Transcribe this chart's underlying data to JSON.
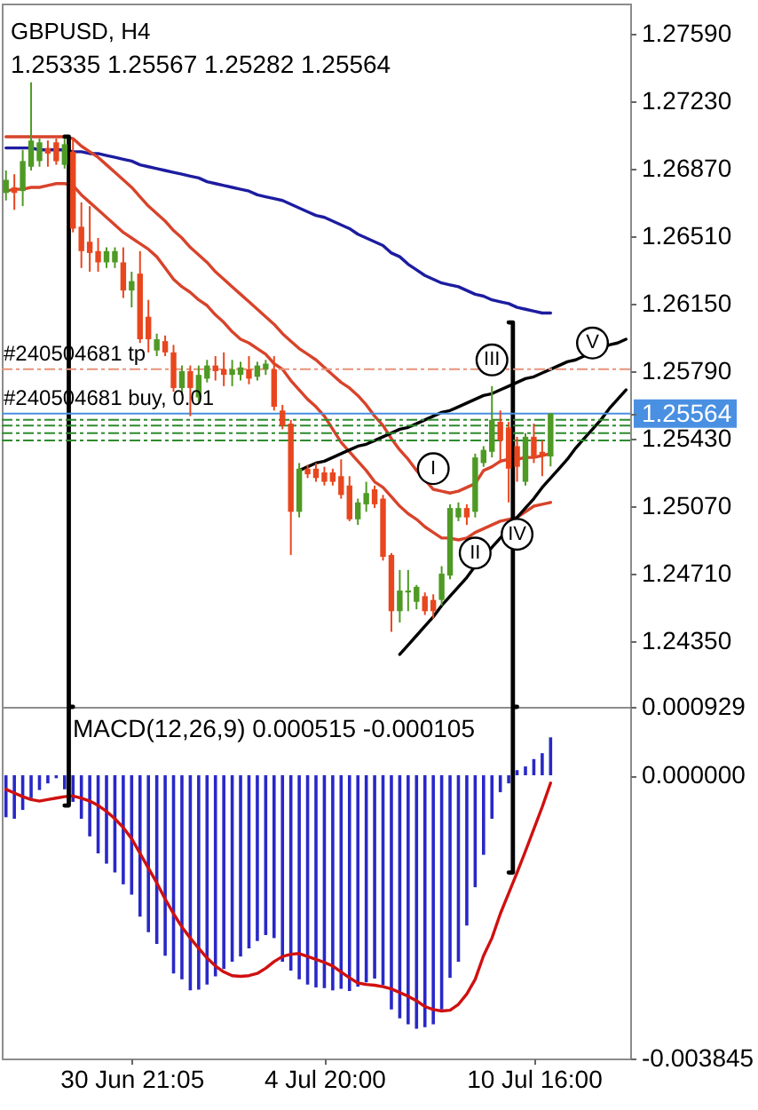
{
  "chart_data": [
    {
      "type": "candlestick",
      "title": "GBPUSD, H4",
      "subtitle": "1.25335 1.25567 1.25282 1.25564",
      "categories": [
        null,
        null,
        null,
        null,
        null,
        null,
        null,
        null,
        null,
        null,
        null,
        null,
        null,
        null,
        null,
        null,
        null,
        null,
        null,
        null,
        null,
        null,
        null,
        null,
        null,
        null,
        null,
        null,
        null,
        null,
        null,
        null,
        null,
        null,
        null,
        null,
        null,
        null,
        null,
        null,
        null,
        null,
        null,
        null,
        null,
        null,
        null,
        null,
        null,
        null,
        null,
        null,
        null,
        null,
        null,
        null,
        null,
        null,
        null,
        null,
        null,
        null,
        null,
        null,
        null,
        null,
        null,
        null,
        null,
        null,
        null,
        null,
        null,
        null,
        null
      ],
      "ohlc": [
        [
          1.2674,
          1.2686,
          1.267,
          1.2681
        ],
        [
          1.2677,
          1.2684,
          1.2665,
          1.2674
        ],
        [
          1.2675,
          1.2697,
          1.2667,
          1.2691
        ],
        [
          1.2688,
          1.2733,
          1.2686,
          1.2702
        ],
        [
          1.2691,
          1.2703,
          1.2688,
          1.2701
        ],
        [
          1.2698,
          1.2702,
          1.2688,
          1.2695
        ],
        [
          1.2701,
          1.2703,
          1.2689,
          1.2691
        ],
        [
          1.2689,
          1.2703,
          1.2687,
          1.27
        ],
        [
          1.2696,
          1.2703,
          1.2653,
          1.2655
        ],
        [
          1.2656,
          1.2669,
          1.2634,
          1.2643
        ],
        [
          1.2648,
          1.2667,
          1.2632,
          1.2642
        ],
        [
          1.2643,
          1.265,
          1.2632,
          1.2637
        ],
        [
          1.2637,
          1.2645,
          1.2634,
          1.2643
        ],
        [
          1.2637,
          1.2645,
          1.2634,
          1.2643
        ],
        [
          1.2637,
          1.2645,
          1.2618,
          1.2622
        ],
        [
          1.2622,
          1.2632,
          1.2613,
          1.2627
        ],
        [
          1.2631,
          1.2643,
          1.2594,
          1.2596
        ],
        [
          1.2608,
          1.2617,
          1.2589,
          1.2596
        ],
        [
          1.259,
          1.2599,
          1.2587,
          1.2596
        ],
        [
          1.2595,
          1.2598,
          1.2587,
          1.2589
        ],
        [
          1.2589,
          1.2593,
          1.2568,
          1.257
        ],
        [
          1.257,
          1.2582,
          1.2566,
          1.2579
        ],
        [
          1.2579,
          1.2582,
          1.2555,
          1.257
        ],
        [
          1.2565,
          1.2582,
          1.2562,
          1.2577
        ],
        [
          1.2575,
          1.2585,
          1.2573,
          1.2582
        ],
        [
          1.2582,
          1.2587,
          1.2574,
          1.2579
        ],
        [
          1.258,
          1.2589,
          1.2571,
          1.2577
        ],
        [
          1.2577,
          1.2585,
          1.2571,
          1.258
        ],
        [
          1.2577,
          1.2584,
          1.2574,
          1.2581
        ],
        [
          1.258,
          1.2587,
          1.2572,
          1.2575
        ],
        [
          1.2576,
          1.2584,
          1.2574,
          1.2582
        ],
        [
          1.258,
          1.2585,
          1.2577,
          1.2583
        ],
        [
          1.258,
          1.2587,
          1.2558,
          1.256
        ],
        [
          1.2558,
          1.2561,
          1.2548,
          1.255
        ],
        [
          1.2551,
          1.2553,
          1.2481,
          1.2504
        ],
        [
          1.2504,
          1.253,
          1.2501,
          1.2527
        ],
        [
          1.2527,
          1.2529,
          1.2522,
          1.2524
        ],
        [
          1.2527,
          1.253,
          1.252,
          1.2522
        ],
        [
          1.2525,
          1.2528,
          1.2518,
          1.252
        ],
        [
          1.2525,
          1.2527,
          1.2518,
          1.252
        ],
        [
          1.2523,
          1.2532,
          1.2511,
          1.2513
        ],
        [
          1.2518,
          1.2523,
          1.2499,
          1.25
        ],
        [
          1.25,
          1.2511,
          1.2497,
          1.2509
        ],
        [
          1.2508,
          1.252,
          1.2504,
          1.2514
        ],
        [
          1.2516,
          1.2518,
          1.2506,
          1.2508
        ],
        [
          1.2511,
          1.2513,
          1.2478,
          1.248
        ],
        [
          1.2481,
          1.2482,
          1.244,
          1.2451
        ],
        [
          1.2451,
          1.2473,
          1.2445,
          1.2462
        ],
        [
          1.2461,
          1.2473,
          1.2451,
          1.2462
        ],
        [
          1.2456,
          1.2465,
          1.2452,
          1.2464
        ],
        [
          1.2459,
          1.2461,
          1.2449,
          1.2451
        ],
        [
          1.2457,
          1.246,
          1.2447,
          1.2451
        ],
        [
          1.2457,
          1.2475,
          1.2454,
          1.2471
        ],
        [
          1.247,
          1.2508,
          1.2468,
          1.2506
        ],
        [
          1.2501,
          1.2509,
          1.2499,
          1.2506
        ],
        [
          1.2506,
          1.2508,
          1.2497,
          1.2501
        ],
        [
          1.2504,
          1.2535,
          1.2501,
          1.2533
        ],
        [
          1.253,
          1.2539,
          1.2528,
          1.2537
        ],
        [
          1.2536,
          1.2571,
          1.2533,
          1.2553
        ],
        [
          1.2552,
          1.2558,
          1.253,
          1.2542
        ],
        [
          1.2549,
          1.2552,
          1.2509,
          1.2527
        ],
        [
          1.2539,
          1.2544,
          1.252,
          1.2528
        ],
        [
          1.252,
          1.2546,
          1.2518,
          1.2544
        ],
        [
          1.2544,
          1.2551,
          1.253,
          1.2533
        ],
        [
          1.2536,
          1.2542,
          1.2523,
          1.2534
        ],
        [
          1.25335,
          1.25567,
          1.25282,
          1.25564
        ],
        null,
        null,
        null,
        null,
        null,
        null,
        null,
        null,
        null
      ],
      "colors": [
        "#4e9a24",
        "#e8461e",
        "#4e9a24",
        "#4e9a24",
        "#4e9a24",
        "#e8461e",
        "#e8461e",
        "#4e9a24",
        "#e8461e",
        "#e8461e",
        "#e8461e",
        "#e8461e",
        "#4e9a24",
        "#4e9a24",
        "#e8461e",
        "#4e9a24",
        "#e8461e",
        "#e8461e",
        "#4e9a24",
        "#e8461e",
        "#e8461e",
        "#4e9a24",
        "#e8461e",
        "#4e9a24",
        "#4e9a24",
        "#e8461e",
        "#e8461e",
        "#4e9a24",
        "#4e9a24",
        "#e8461e",
        "#4e9a24",
        "#4e9a24",
        "#e8461e",
        "#e8461e",
        "#e8461e",
        "#4e9a24",
        "#e8461e",
        "#e8461e",
        "#e8461e",
        "#e8461e",
        "#e8461e",
        "#e8461e",
        "#4e9a24",
        "#4e9a24",
        "#e8461e",
        "#e8461e",
        "#e8461e",
        "#4e9a24",
        "#4e9a24",
        "#4e9a24",
        "#e8461e",
        "#e8461e",
        "#4e9a24",
        "#4e9a24",
        "#4e9a24",
        "#e8461e",
        "#4e9a24",
        "#4e9a24",
        "#4e9a24",
        "#e8461e",
        "#e8461e",
        "#e8461e",
        "#4e9a24",
        "#e8461e",
        "#e8461e",
        "#4e9a24",
        null,
        null,
        null,
        null,
        null,
        null,
        null,
        null,
        null
      ],
      "series": [
        {
          "type": "line",
          "color": "#1c1ca0",
          "values": [
            1.2698,
            1.2698,
            1.2698,
            1.2698,
            1.2697,
            1.2697,
            1.2697,
            1.2697,
            1.2696,
            1.2696,
            1.2695,
            1.2695,
            1.2694,
            1.2693,
            1.2692,
            1.2691,
            1.2689,
            1.2688,
            1.2687,
            1.2686,
            1.2685,
            1.2684,
            1.2683,
            1.2682,
            1.268,
            1.2679,
            1.2678,
            1.2677,
            1.2676,
            1.2675,
            1.2673,
            1.2672,
            1.2671,
            1.267,
            1.2668,
            1.2666,
            1.2664,
            1.2662,
            1.2661,
            1.2659,
            1.2657,
            1.2655,
            1.2652,
            1.265,
            1.2648,
            1.2646,
            1.2642,
            1.264,
            1.2636,
            1.2633,
            1.263,
            1.2628,
            1.2626,
            1.2625,
            1.2624,
            1.2622,
            1.262,
            1.2619,
            1.2617,
            1.2616,
            1.2615,
            1.2613,
            1.2612,
            1.2611,
            1.261,
            1.261,
            null,
            null,
            null,
            null,
            null,
            null,
            null,
            null,
            null
          ]
        },
        {
          "type": "line",
          "color": "#d8432b",
          "values": [
            1.2704,
            1.2704,
            1.2704,
            1.2704,
            1.2704,
            1.2704,
            1.2704,
            1.2704,
            1.2703,
            1.2699,
            1.2696,
            1.2693,
            1.2689,
            1.2685,
            1.2681,
            1.2677,
            1.2672,
            1.2667,
            1.2663,
            1.2659,
            1.2654,
            1.265,
            1.2645,
            1.2641,
            1.2637,
            1.2632,
            1.2628,
            1.2624,
            1.262,
            1.2616,
            1.2612,
            1.2608,
            1.2604,
            1.2599,
            1.2595,
            1.2591,
            1.2588,
            1.2585,
            1.2581,
            1.2577,
            1.2573,
            1.257,
            1.2566,
            1.2561,
            1.2555,
            1.255,
            1.2543,
            1.2537,
            1.2532,
            1.2526,
            1.2521,
            1.2516,
            1.2515,
            1.2514,
            1.2515,
            1.2517,
            1.2519,
            1.2526,
            1.2528,
            1.2531,
            1.2532,
            1.2532,
            1.2533,
            1.2533,
            1.2534,
            1.2535,
            null,
            null,
            null,
            null,
            null,
            null,
            null,
            null,
            null
          ]
        },
        {
          "type": "line",
          "color": "#d8432b",
          "values": [
            1.2675,
            1.2676,
            1.2676,
            1.2677,
            1.2677,
            1.2678,
            1.2679,
            1.2679,
            1.2678,
            1.2673,
            1.2669,
            1.2665,
            1.2661,
            1.2657,
            1.2653,
            1.265,
            1.2647,
            1.2644,
            1.264,
            1.2634,
            1.2628,
            1.2624,
            1.2621,
            1.2617,
            1.2614,
            1.2609,
            1.2605,
            1.26,
            1.2596,
            1.2594,
            1.2591,
            1.2588,
            1.2583,
            1.258,
            1.2574,
            1.2569,
            1.2564,
            1.256,
            1.2555,
            1.2548,
            1.2541,
            1.2536,
            1.2531,
            1.2526,
            1.252,
            1.2517,
            1.2512,
            1.2507,
            1.2503,
            1.25,
            1.2496,
            1.2493,
            1.249,
            1.249,
            1.2489,
            1.249,
            1.2493,
            1.2495,
            1.2497,
            1.2499,
            1.25,
            1.2501,
            1.2504,
            1.2507,
            1.2508,
            1.2509,
            null,
            null,
            null,
            null,
            null,
            null,
            null,
            null,
            null
          ]
        },
        {
          "type": "line",
          "color": "#000000",
          "values": [
            null,
            null,
            null,
            null,
            null,
            null,
            null,
            null,
            null,
            null,
            null,
            null,
            null,
            null,
            null,
            null,
            null,
            null,
            null,
            null,
            null,
            null,
            null,
            null,
            null,
            null,
            null,
            null,
            null,
            null,
            null,
            null,
            null,
            null,
            null,
            1.2526,
            1.2528,
            1.253,
            1.2531,
            1.2533,
            1.2535,
            1.2537,
            1.2539,
            1.254,
            1.2542,
            1.2544,
            1.2546,
            1.2548,
            1.2549,
            1.2551,
            1.2553,
            1.2555,
            1.2557,
            1.2558,
            1.256,
            1.2562,
            1.2564,
            1.2566,
            1.2567,
            1.2569,
            1.2571,
            1.2573,
            1.2575,
            1.2576,
            1.2578,
            1.258,
            1.2582,
            1.2584,
            1.2585,
            1.2587,
            1.2589,
            1.2591,
            1.2593,
            1.2594,
            1.2596
          ]
        },
        {
          "type": "line",
          "color": "#000000",
          "values": [
            null,
            null,
            null,
            null,
            null,
            null,
            null,
            null,
            null,
            null,
            null,
            null,
            null,
            null,
            null,
            null,
            null,
            null,
            null,
            null,
            null,
            null,
            null,
            null,
            null,
            null,
            null,
            null,
            null,
            null,
            null,
            null,
            null,
            null,
            null,
            null,
            null,
            null,
            null,
            null,
            null,
            null,
            null,
            null,
            null,
            null,
            null,
            1.2428,
            1.2433,
            1.2438,
            1.2443,
            1.2448,
            1.2454,
            1.2459,
            1.2464,
            1.2469,
            1.2475,
            1.248,
            1.2485,
            1.249,
            1.2496,
            1.2501,
            1.2506,
            1.2511,
            1.2517,
            1.2522,
            1.2527,
            1.2532,
            1.2538,
            1.2543,
            1.2548,
            1.2553,
            1.2559,
            1.2564,
            1.2569
          ]
        },
        {
          "type": "step",
          "color": "#000000",
          "values": [
            null,
            null,
            null,
            null,
            null,
            null,
            null,
            1.2704,
            1.24,
            null,
            null,
            null,
            null,
            null,
            null,
            null,
            null,
            null,
            null,
            null,
            null,
            null,
            null,
            null,
            null,
            null,
            null,
            null,
            null,
            null,
            null,
            null,
            null,
            null,
            null,
            null,
            null,
            null,
            null,
            null,
            null,
            null,
            null,
            null,
            null,
            null,
            null,
            null,
            null,
            null,
            null,
            null,
            null,
            null,
            null,
            null,
            null,
            null,
            null,
            null,
            null,
            null,
            null,
            null,
            null,
            null,
            null,
            null,
            null,
            null,
            null,
            null,
            null,
            null,
            null
          ]
        },
        {
          "type": "step",
          "color": "#000000",
          "values": [
            null,
            null,
            null,
            null,
            null,
            null,
            null,
            null,
            null,
            null,
            null,
            null,
            null,
            null,
            null,
            null,
            null,
            null,
            null,
            null,
            null,
            null,
            null,
            null,
            null,
            null,
            null,
            null,
            null,
            null,
            null,
            null,
            null,
            null,
            null,
            null,
            null,
            null,
            null,
            null,
            null,
            null,
            null,
            null,
            null,
            null,
            null,
            null,
            null,
            null,
            null,
            null,
            null,
            null,
            null,
            null,
            null,
            null,
            null,
            null,
            1.2605,
            1.24,
            null,
            null,
            null,
            null,
            null,
            null,
            null,
            null,
            null,
            null,
            null,
            null,
            null
          ]
        },
        {
          "type": "scatter",
          "color": "#000000",
          "marker": "circle",
          "values": [
            null,
            null,
            null,
            null,
            null,
            null,
            null,
            null,
            null,
            null,
            null,
            null,
            null,
            null,
            null,
            null,
            null,
            null,
            null,
            null,
            null,
            null,
            null,
            null,
            null,
            null,
            null,
            null,
            null,
            null,
            null,
            null,
            null,
            null,
            null,
            null,
            null,
            null,
            null,
            null,
            null,
            null,
            null,
            null,
            null,
            null,
            null,
            null,
            null,
            null,
            null,
            1.2527,
            null,
            null,
            null,
            null,
            1.2482,
            null,
            1.2585,
            null,
            null,
            1.2492,
            null,
            null,
            null,
            null,
            null,
            null,
            null,
            null,
            1.2594,
            null,
            null,
            null,
            null
          ],
          "value_labels": [
            null,
            null,
            null,
            null,
            null,
            null,
            null,
            null,
            null,
            null,
            null,
            null,
            null,
            null,
            null,
            null,
            null,
            null,
            null,
            null,
            null,
            null,
            null,
            null,
            null,
            null,
            null,
            null,
            null,
            null,
            null,
            null,
            null,
            null,
            null,
            null,
            null,
            null,
            null,
            null,
            null,
            null,
            null,
            null,
            null,
            null,
            null,
            null,
            null,
            null,
            null,
            "I",
            null,
            null,
            null,
            null,
            "II",
            null,
            "III",
            null,
            null,
            "IV",
            null,
            null,
            null,
            null,
            null,
            null,
            null,
            null,
            "V",
            null,
            null,
            null,
            null
          ]
        }
      ],
      "ref_lines": [
        {
          "axis": "y",
          "value": 1.258,
          "label": "#240504681 tp",
          "color": "#e8937a",
          "line_style": "dashed"
        },
        {
          "axis": "y",
          "value": 1.25564,
          "label": "#240504681 buy, 0.01",
          "color": "#4a90e2"
        },
        {
          "axis": "y",
          "value": 1.2553,
          "color": "#2e8b2e",
          "line_style": "dashed"
        },
        {
          "axis": "y",
          "value": 1.255,
          "color": "#2e8b2e",
          "line_style": "dashed"
        },
        {
          "axis": "y",
          "value": 1.2546,
          "color": "#2e8b2e",
          "line_style": "dashed"
        },
        {
          "axis": "y",
          "value": 1.2542,
          "color": "#2e8b2e",
          "line_style": "dashed"
        }
      ],
      "ylim": [
        1.24,
        1.2775
      ],
      "yticks": [
        {
          "value": 1.2435,
          "label": "1.24350"
        },
        {
          "value": 1.2471,
          "label": "1.24710"
        },
        {
          "value": 1.2507,
          "label": "1.25070"
        },
        {
          "value": 1.2543,
          "label": "1.25430"
        },
        {
          "value": 1.25564,
          "label": "1.25564"
        },
        {
          "value": 1.2579,
          "label": "1.25790"
        },
        {
          "value": 1.2615,
          "label": "1.26150"
        },
        {
          "value": 1.2651,
          "label": "1.26510"
        },
        {
          "value": 1.2687,
          "label": "1.26870"
        },
        {
          "value": 1.2723,
          "label": "1.27230"
        },
        {
          "value": 1.2759,
          "label": "1.27590"
        }
      ]
    },
    {
      "type": "bar",
      "title": "MACD(12,26,9) 0.000515 -0.000105",
      "categories": [
        null,
        null,
        null,
        null,
        null,
        null,
        null,
        null,
        null,
        null,
        null,
        null,
        null,
        null,
        null,
        "30 Jun 21:05",
        null,
        null,
        null,
        null,
        null,
        null,
        null,
        null,
        null,
        null,
        null,
        null,
        null,
        null,
        null,
        null,
        null,
        null,
        null,
        null,
        null,
        null,
        "4 Jul 20:00",
        null,
        null,
        null,
        null,
        null,
        null,
        null,
        null,
        null,
        null,
        null,
        null,
        null,
        null,
        null,
        null,
        null,
        null,
        null,
        null,
        null,
        null,
        null,
        null,
        "10 Jul 16:00",
        null,
        null,
        null,
        null,
        null,
        null,
        null,
        null,
        null,
        null,
        null
      ],
      "series": [
        {
          "color": "#2828c8",
          "values": [
            -0.00057,
            -0.00059,
            -0.00047,
            -0.00031,
            -0.0002,
            -0.00011,
            -4e-05,
            -0.00019,
            -0.00036,
            -0.00059,
            -0.00083,
            -0.00106,
            -0.0012,
            -0.00132,
            -0.00148,
            -0.00162,
            -0.00192,
            -0.00213,
            -0.00229,
            -0.00245,
            -0.00269,
            -0.00277,
            -0.00292,
            -0.00291,
            -0.00284,
            -0.00273,
            -0.00263,
            -0.00253,
            -0.00246,
            -0.00235,
            -0.00225,
            -0.00217,
            -0.00221,
            -0.00253,
            -0.00265,
            -0.00277,
            -0.00284,
            -0.00288,
            -0.00289,
            -0.00292,
            -0.0029,
            -0.00293,
            -0.00287,
            -0.00281,
            -0.00276,
            -0.00285,
            -0.00318,
            -0.0033,
            -0.00338,
            -0.00344,
            -0.00342,
            -0.00338,
            -0.00318,
            -0.00275,
            -0.00253,
            -0.00204,
            -0.00152,
            -0.00108,
            -0.00059,
            -0.00023,
            -0.00011,
            7e-05,
            0.00012,
            0.00022,
            0.0003,
            0.000515,
            null,
            null,
            null,
            null,
            null,
            null,
            null,
            null,
            null
          ]
        },
        {
          "type": "line",
          "color": "#d01010",
          "values": [
            -0.00019,
            -0.00024,
            -0.00029,
            -0.00033,
            -0.00035,
            -0.00033,
            -0.00031,
            -0.00029,
            -0.00028,
            -0.00031,
            -0.00035,
            -0.00041,
            -0.00049,
            -0.00059,
            -0.00071,
            -0.00086,
            -0.00106,
            -0.00126,
            -0.00146,
            -0.00168,
            -0.00188,
            -0.00206,
            -0.00221,
            -0.00235,
            -0.00248,
            -0.00259,
            -0.00267,
            -0.00272,
            -0.00273,
            -0.00272,
            -0.00269,
            -0.00262,
            -0.00253,
            -0.00246,
            -0.00243,
            -0.00242,
            -0.00246,
            -0.0025,
            -0.00254,
            -0.00259,
            -0.00267,
            -0.00275,
            -0.00282,
            -0.00284,
            -0.00285,
            -0.00287,
            -0.0029,
            -0.00295,
            -0.003,
            -0.00306,
            -0.00314,
            -0.00318,
            -0.0032,
            -0.00319,
            -0.00311,
            -0.00297,
            -0.00277,
            -0.00245,
            -0.00221,
            -0.00188,
            -0.0016,
            -0.00132,
            -0.00103,
            -0.00073,
            -0.00043,
            -0.000105,
            null,
            null,
            null,
            null,
            null,
            null,
            null,
            null,
            null
          ]
        },
        {
          "type": "step",
          "color": "#000000",
          "values": [
            null,
            null,
            null,
            null,
            null,
            null,
            null,
            -0.00041,
            0.000929,
            null,
            null,
            null,
            null,
            null,
            null,
            null,
            null,
            null,
            null,
            null,
            null,
            null,
            null,
            null,
            null,
            null,
            null,
            null,
            null,
            null,
            null,
            null,
            null,
            null,
            null,
            null,
            null,
            null,
            null,
            null,
            null,
            null,
            null,
            null,
            null,
            null,
            null,
            null,
            null,
            null,
            null,
            null,
            null,
            null,
            null,
            null,
            null,
            null,
            null,
            null,
            null,
            null,
            null,
            null,
            null,
            null,
            null,
            null,
            null,
            null,
            null,
            null,
            null,
            null,
            null
          ]
        },
        {
          "type": "step",
          "color": "#000000",
          "values": [
            null,
            null,
            null,
            null,
            null,
            null,
            null,
            null,
            null,
            null,
            null,
            null,
            null,
            null,
            null,
            null,
            null,
            null,
            null,
            null,
            null,
            null,
            null,
            null,
            null,
            null,
            null,
            null,
            null,
            null,
            null,
            null,
            null,
            null,
            null,
            null,
            null,
            null,
            null,
            null,
            null,
            null,
            null,
            null,
            null,
            null,
            null,
            null,
            null,
            null,
            null,
            null,
            null,
            null,
            null,
            null,
            null,
            null,
            null,
            null,
            -0.00132,
            0.000929,
            null,
            null,
            null,
            null,
            null,
            null,
            null,
            null,
            null,
            null,
            null,
            null,
            null
          ]
        }
      ],
      "ylim": [
        -0.003845,
        0.000929
      ],
      "yticks": [
        {
          "value": -0.003845,
          "label": "-0.003845"
        },
        {
          "value": 0,
          "label": "0.000000"
        },
        {
          "value": 0.000929,
          "label": "0.000929"
        }
      ]
    }
  ]
}
